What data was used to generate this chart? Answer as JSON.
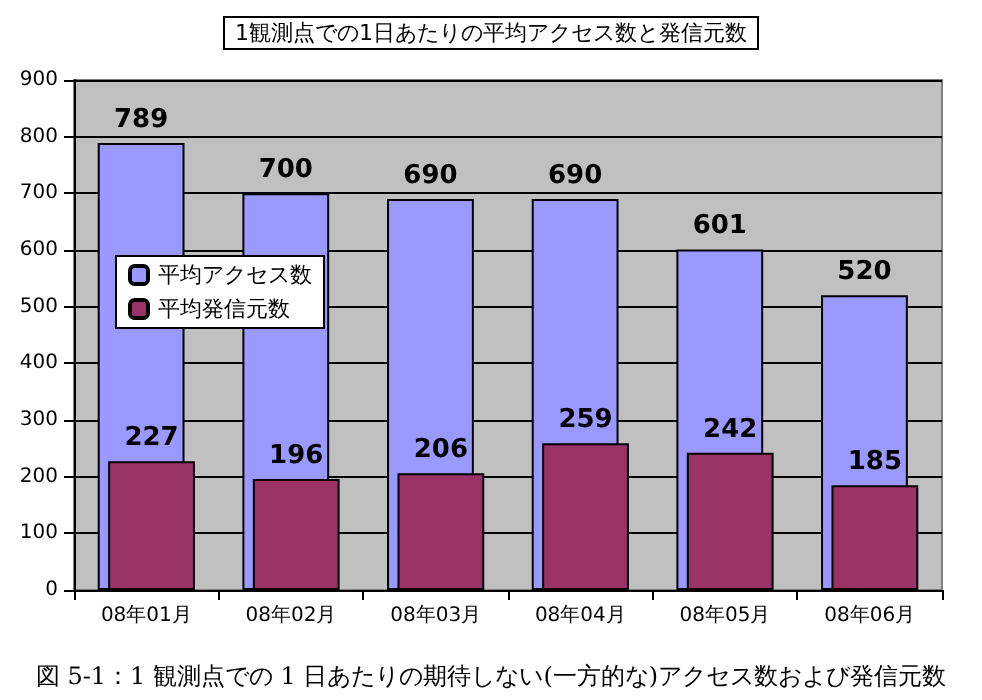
{
  "chart_data": {
    "type": "bar",
    "title": "1観測点での1日あたりの平均アクセス数と発信元数",
    "categories": [
      "08年01月",
      "08年02月",
      "08年03月",
      "08年04月",
      "08年05月",
      "08年06月"
    ],
    "series": [
      {
        "name": "平均アクセス数",
        "color": "#9999ff",
        "values": [
          789,
          700,
          690,
          690,
          601,
          520
        ]
      },
      {
        "name": "平均発信元数",
        "color": "#993366",
        "values": [
          227,
          196,
          206,
          259,
          242,
          185
        ]
      }
    ],
    "ylim": [
      0,
      900
    ],
    "yticks": [
      0,
      100,
      200,
      300,
      400,
      500,
      600,
      700,
      800,
      900
    ],
    "grid": "y",
    "legend": "left",
    "data_labels": true,
    "annotations": [
      "図 5-1：1 観測点での 1 日あたりの期待しない(一方的な)アクセス数および発信元数"
    ]
  }
}
